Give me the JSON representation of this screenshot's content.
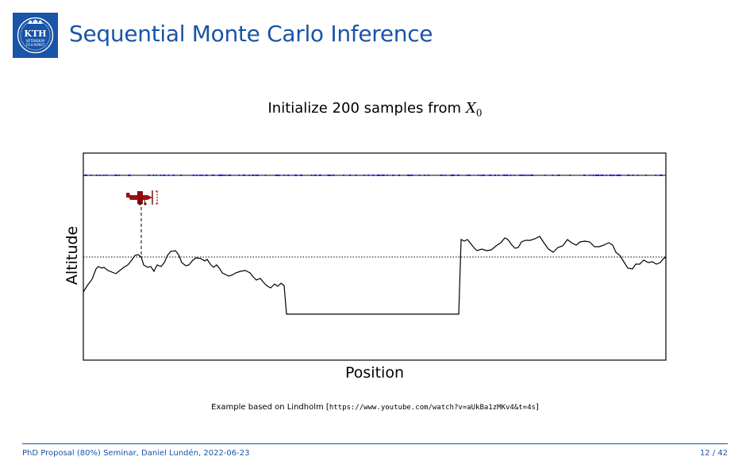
{
  "slide": {
    "title": "Sequential Monte Carlo Inference",
    "subtitle_text": "Initialize 200 samples from",
    "subtitle_math_symbol": "X",
    "subtitle_math_subscript": "0"
  },
  "logo": {
    "text_main": "KTH",
    "text_sub_1": "VETENSKAP",
    "text_sub_2": "OCH KONST",
    "color": "#1954a6"
  },
  "figure": {
    "xlabel": "Position",
    "ylabel": "Altitude",
    "colors": {
      "particles": "#2020e0",
      "terrain": "#000000",
      "airplane": "#a01010",
      "frame": "#000000"
    },
    "particle_count": 200
  },
  "credit": {
    "prefix": "Example based on Lindholm [",
    "url": "https://www.youtube.com/watch?v=aUkBa1zMKv4&t=4s",
    "suffix": "]"
  },
  "footer": {
    "left": "PhD Proposal (80%) Seminar, Daniel Lundén, 2022-06-23",
    "right": "12 / 42"
  }
}
